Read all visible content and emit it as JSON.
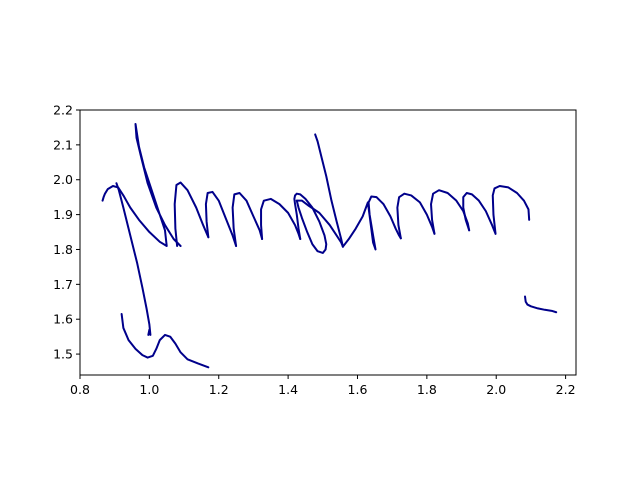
{
  "chart_data": {
    "type": "line",
    "title": "",
    "xlabel": "",
    "ylabel": "",
    "xlim": [
      0.8,
      2.23
    ],
    "ylim": [
      1.44,
      2.2
    ],
    "grid": false,
    "line_color": "#00008B",
    "xticks": [
      "0.8",
      "1.0",
      "1.2",
      "1.4",
      "1.6",
      "1.8",
      "2.0",
      "2.2"
    ],
    "yticks": [
      "1.5",
      "1.6",
      "1.7",
      "1.8",
      "1.9",
      "2.0",
      "2.1",
      "2.2"
    ],
    "series": [
      {
        "x": [
          0.865,
          0.868,
          0.872,
          0.88,
          0.895,
          0.91,
          0.925,
          0.945,
          0.97,
          1.0,
          1.03,
          1.05,
          1.045,
          1.025,
          1.005,
          0.985,
          0.97,
          0.96,
          0.963,
          0.975,
          0.995,
          1.02,
          1.045,
          1.07,
          1.09
        ],
        "y": [
          1.94,
          1.95,
          1.96,
          1.973,
          1.982,
          1.978,
          1.955,
          1.92,
          1.885,
          1.85,
          1.822,
          1.81,
          1.855,
          1.915,
          1.975,
          2.035,
          2.095,
          2.16,
          2.12,
          2.07,
          1.99,
          1.92,
          1.87,
          1.83,
          1.81
        ]
      },
      {
        "x": [
          0.905,
          0.912,
          0.925,
          0.945,
          0.965,
          0.98,
          0.992,
          1.0,
          1.003,
          1.0,
          0.997
        ],
        "y": [
          1.99,
          1.97,
          1.92,
          1.84,
          1.76,
          1.69,
          1.63,
          1.585,
          1.555,
          1.57,
          1.555
        ]
      },
      {
        "x": [
          1.08,
          1.075,
          1.073,
          1.078,
          1.09,
          1.11,
          1.135,
          1.155,
          1.17
        ],
        "y": [
          1.81,
          1.86,
          1.93,
          1.985,
          1.992,
          1.97,
          1.92,
          1.87,
          1.835
        ]
      },
      {
        "x": [
          1.17,
          1.165,
          1.163,
          1.168,
          1.182,
          1.2,
          1.22,
          1.24,
          1.25
        ],
        "y": [
          1.835,
          1.88,
          1.93,
          1.962,
          1.965,
          1.94,
          1.89,
          1.84,
          1.81
        ]
      },
      {
        "x": [
          1.25,
          1.243,
          1.24,
          1.245,
          1.26,
          1.28,
          1.3,
          1.318,
          1.325
        ],
        "y": [
          1.81,
          1.86,
          1.92,
          1.958,
          1.962,
          1.94,
          1.895,
          1.855,
          1.83
        ]
      },
      {
        "x": [
          1.325,
          1.322,
          1.322,
          1.33,
          1.35,
          1.375,
          1.4,
          1.42,
          1.43,
          1.435
        ],
        "y": [
          1.83,
          1.87,
          1.915,
          1.94,
          1.945,
          1.93,
          1.905,
          1.87,
          1.845,
          1.83
        ]
      },
      {
        "x": [
          1.435,
          1.43,
          1.425,
          1.42,
          1.418,
          1.42,
          1.425,
          1.435,
          1.45,
          1.47,
          1.49,
          1.505,
          1.51,
          1.508,
          1.5,
          1.485,
          1.47,
          1.455,
          1.44,
          1.43,
          1.425
        ],
        "y": [
          1.83,
          1.86,
          1.9,
          1.93,
          1.945,
          1.955,
          1.96,
          1.958,
          1.945,
          1.92,
          1.88,
          1.84,
          1.815,
          1.8,
          1.79,
          1.795,
          1.815,
          1.85,
          1.89,
          1.92,
          1.94
        ]
      },
      {
        "x": [
          1.425,
          1.44,
          1.46,
          1.49,
          1.52,
          1.54,
          1.553,
          1.558
        ],
        "y": [
          1.94,
          1.94,
          1.925,
          1.905,
          1.87,
          1.84,
          1.82,
          1.808
        ]
      },
      {
        "x": [
          1.478,
          1.485,
          1.495,
          1.51,
          1.525,
          1.54,
          1.553,
          1.558
        ],
        "y": [
          2.13,
          2.11,
          2.07,
          2.01,
          1.94,
          1.88,
          1.83,
          1.808
        ]
      },
      {
        "x": [
          1.558,
          1.575,
          1.595,
          1.615,
          1.63,
          1.645,
          1.652,
          1.645,
          1.635,
          1.632,
          1.64,
          1.655,
          1.675,
          1.695,
          1.71,
          1.72,
          1.725
        ],
        "y": [
          1.808,
          1.83,
          1.86,
          1.895,
          1.935,
          1.82,
          1.8,
          1.84,
          1.9,
          1.935,
          1.952,
          1.95,
          1.93,
          1.895,
          1.86,
          1.84,
          1.832
        ]
      },
      {
        "x": [
          1.725,
          1.718,
          1.715,
          1.72,
          1.735,
          1.755,
          1.78,
          1.8,
          1.815,
          1.822
        ],
        "y": [
          1.832,
          1.87,
          1.92,
          1.95,
          1.96,
          1.955,
          1.935,
          1.9,
          1.865,
          1.845
        ]
      },
      {
        "x": [
          1.822,
          1.815,
          1.812,
          1.818,
          1.835,
          1.86,
          1.885,
          1.905,
          1.918,
          1.922
        ],
        "y": [
          1.845,
          1.885,
          1.93,
          1.96,
          1.97,
          1.962,
          1.94,
          1.91,
          1.875,
          1.855
        ]
      },
      {
        "x": [
          1.922,
          1.912,
          1.905,
          1.905,
          1.915,
          1.93,
          1.95,
          1.97,
          1.988,
          1.998
        ],
        "y": [
          1.855,
          1.885,
          1.92,
          1.95,
          1.962,
          1.958,
          1.94,
          1.91,
          1.87,
          1.845
        ]
      },
      {
        "x": [
          1.998,
          1.992,
          1.99,
          1.995,
          2.01,
          2.035,
          2.06,
          2.08,
          2.093,
          2.095
        ],
        "y": [
          1.845,
          1.9,
          1.955,
          1.975,
          1.982,
          1.978,
          1.962,
          1.94,
          1.915,
          1.885
        ]
      },
      {
        "x": [
          0.92,
          0.925,
          0.94,
          0.96,
          0.98,
          0.995,
          1.01,
          1.02,
          1.03,
          1.045,
          1.06,
          1.075,
          1.09,
          1.11,
          1.14,
          1.17
        ],
        "y": [
          1.615,
          1.575,
          1.54,
          1.515,
          1.497,
          1.49,
          1.495,
          1.515,
          1.54,
          1.555,
          1.55,
          1.53,
          1.505,
          1.485,
          1.473,
          1.462
        ]
      },
      {
        "x": [
          2.083,
          2.085,
          2.09,
          2.1,
          2.12,
          2.14,
          2.16,
          2.173
        ],
        "y": [
          1.665,
          1.65,
          1.642,
          1.637,
          1.631,
          1.627,
          1.624,
          1.62
        ]
      }
    ]
  }
}
